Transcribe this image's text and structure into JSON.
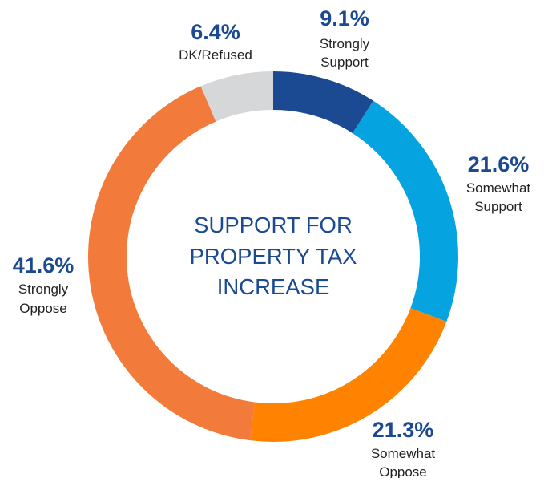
{
  "chart_data": {
    "type": "pie",
    "variant": "donut",
    "title_lines": [
      "SUPPORT FOR",
      "PROPERTY TAX",
      "INCREASE"
    ],
    "slices": [
      {
        "key": "strongly-support",
        "value": 9.1,
        "value_label": "9.1%",
        "label_lines": [
          "Strongly",
          "Support"
        ],
        "color": "#1B4A93"
      },
      {
        "key": "somewhat-support",
        "value": 21.6,
        "value_label": "21.6%",
        "label_lines": [
          "Somewhat",
          "Support"
        ],
        "color": "#05A4E0"
      },
      {
        "key": "somewhat-oppose",
        "value": 21.3,
        "value_label": "21.3%",
        "label_lines": [
          "Somewhat",
          "Oppose"
        ],
        "color": "#FF8300"
      },
      {
        "key": "strongly-oppose",
        "value": 41.6,
        "value_label": "41.6%",
        "label_lines": [
          "Strongly",
          "Oppose"
        ],
        "color": "#F27B3C"
      },
      {
        "key": "dk-refused",
        "value": 6.4,
        "value_label": "6.4%",
        "label_lines": [
          "DK/Refused"
        ],
        "color": "#D6D7D9"
      }
    ],
    "label_color": "#1B4A93",
    "title_color": "#1B4A93",
    "start_angle": "12 o'clock",
    "direction": "clockwise",
    "legend": "none"
  }
}
